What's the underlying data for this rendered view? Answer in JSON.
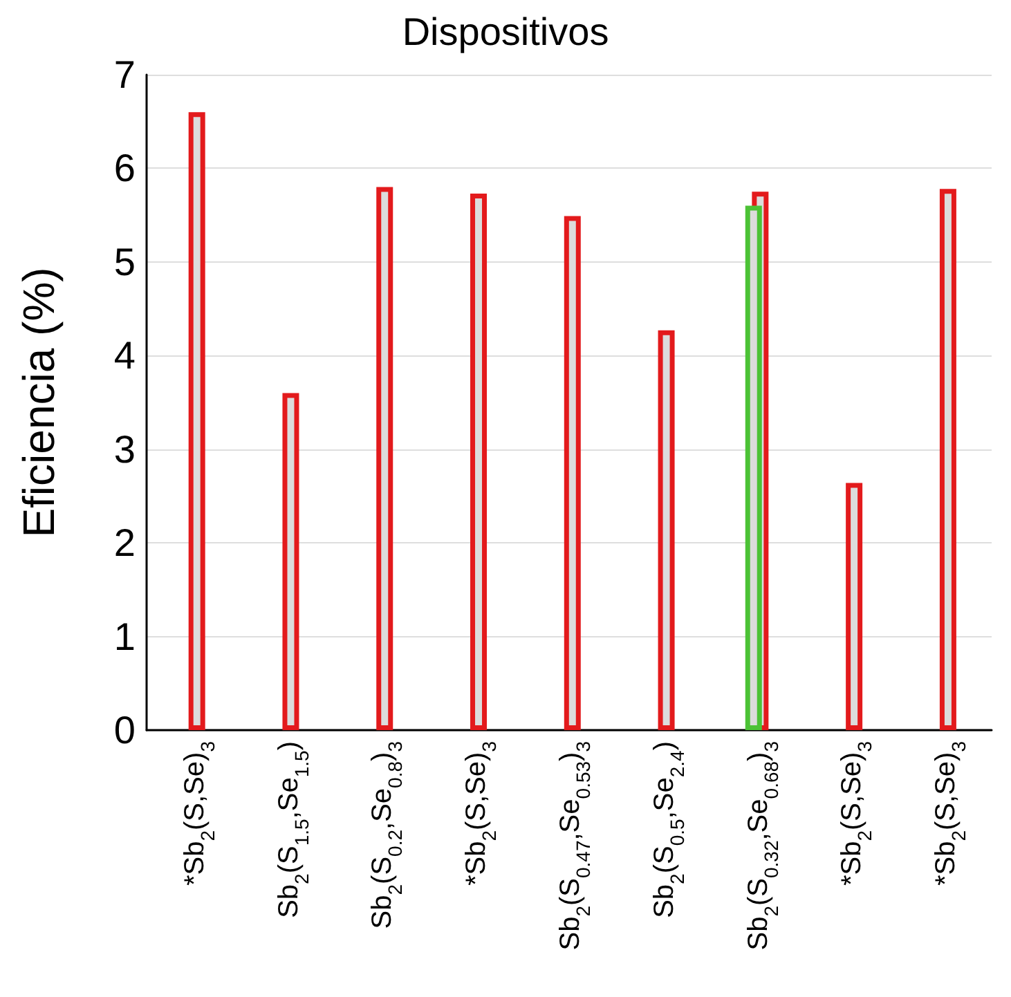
{
  "chart_data": {
    "type": "bar",
    "title": "Dispositivos",
    "ylabel": "Eficiencia (%)",
    "categories": [
      "*Sb$_{2}$(S,Se)$_{3}$",
      "Sb$_{2}$(S$_{1.5}$,Se$_{1.5}$)",
      "Sb$_{2}$(S$_{0.2}$,Se$_{0.8}$)$_{3}$",
      "*Sb$_{2}$(S,Se)$_{3}$",
      "Sb$_{2}$(S$_{0.47}$,Se$_{0.53}$)$_{3}$",
      "Sb$_{2}$(S$_{0.5}$,Se$_{2.4}$)",
      "Sb$_{2}$(S$_{0.32}$,Se$_{0.68}$)$_{3}$",
      "*Sb$_{2}$(S,Se)$_{3}$",
      "*Sb$_{2}$(S,Se)$_{3}$"
    ],
    "series": [
      {
        "color": "#4cc236",
        "values": [
          null,
          null,
          null,
          null,
          null,
          null,
          5.6,
          null,
          null
        ]
      },
      {
        "color": "#e31a1c",
        "values": [
          6.6,
          3.6,
          5.8,
          5.73,
          5.49,
          4.27,
          5.75,
          2.64,
          5.78
        ]
      }
    ],
    "ylim": [
      0,
      7
    ],
    "yticks": [
      0,
      1,
      2,
      3,
      4,
      5,
      6,
      7
    ],
    "grid": "y"
  }
}
